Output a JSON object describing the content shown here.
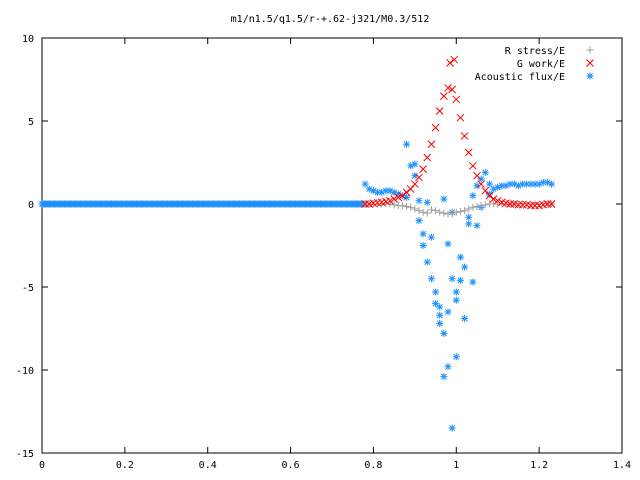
{
  "chart_data": {
    "type": "scatter",
    "title": "m1/n1.5/q1.5/r-+.62-j321/M0.3/512",
    "xlabel": "",
    "ylabel": "",
    "xlim": [
      0,
      1.4
    ],
    "ylim": [
      -15,
      10
    ],
    "xticks": [
      "0",
      "0.2",
      "0.4",
      "0.6",
      "0.8",
      "1",
      "1.2",
      "1.4"
    ],
    "yticks": [
      "10",
      "5",
      "0",
      "-5",
      "-10",
      "-15"
    ],
    "grid": false,
    "legend_position": "top-right",
    "series": [
      {
        "name": "R stress/E",
        "marker": "plus",
        "color": "#a0a0a0",
        "x": [
          0.78,
          0.79,
          0.8,
          0.81,
          0.82,
          0.83,
          0.84,
          0.85,
          0.86,
          0.87,
          0.88,
          0.89,
          0.9,
          0.91,
          0.92,
          0.93,
          0.94,
          0.95,
          0.96,
          0.97,
          0.98,
          0.99,
          1.0,
          1.01,
          1.02,
          1.03,
          1.04,
          1.05,
          1.06,
          1.07,
          1.08,
          1.09,
          1.1,
          1.11,
          1.12,
          1.13,
          1.14,
          1.15,
          1.16,
          1.17,
          1.18,
          1.19,
          1.2,
          1.21,
          1.22,
          1.23
        ],
        "y": [
          0.0,
          0.0,
          0.0,
          0.0,
          0.0,
          0.0,
          0.0,
          -0.05,
          -0.1,
          -0.1,
          -0.15,
          -0.2,
          -0.3,
          -0.4,
          -0.5,
          -0.55,
          -0.35,
          -0.4,
          -0.5,
          -0.55,
          -0.6,
          -0.6,
          -0.5,
          -0.45,
          -0.4,
          -0.3,
          -0.2,
          -0.15,
          -0.1,
          -0.05,
          0.0,
          0.0,
          0.0,
          0.0,
          0.0,
          0.0,
          0.0,
          0.0,
          0.0,
          0.0,
          0.0,
          0.0,
          0.0,
          0.0,
          0.0,
          0.0
        ]
      },
      {
        "name": "G work/E",
        "marker": "cross",
        "color": "#ff0000",
        "x": [
          0.78,
          0.79,
          0.8,
          0.81,
          0.82,
          0.83,
          0.84,
          0.85,
          0.86,
          0.87,
          0.88,
          0.89,
          0.9,
          0.91,
          0.92,
          0.93,
          0.94,
          0.95,
          0.96,
          0.97,
          0.98,
          0.99,
          1.0,
          1.01,
          1.02,
          1.03,
          1.04,
          1.05,
          1.06,
          1.07,
          1.08,
          1.09,
          1.1,
          1.11,
          1.12,
          1.13,
          1.14,
          1.15,
          1.16,
          1.17,
          1.18,
          1.19,
          1.2,
          1.21,
          1.22,
          1.23,
          0.985,
          0.995
        ],
        "y": [
          0.0,
          0.0,
          0.05,
          0.08,
          0.1,
          0.15,
          0.2,
          0.3,
          0.4,
          0.5,
          0.7,
          0.9,
          1.2,
          1.6,
          2.1,
          2.8,
          3.6,
          4.6,
          5.6,
          6.5,
          7.0,
          6.9,
          6.3,
          5.2,
          4.1,
          3.1,
          2.3,
          1.7,
          1.2,
          0.8,
          0.5,
          0.3,
          0.2,
          0.1,
          0.05,
          0.0,
          0.0,
          -0.05,
          -0.05,
          -0.05,
          -0.1,
          -0.1,
          -0.1,
          -0.05,
          0.0,
          0.0,
          8.5,
          8.7
        ]
      },
      {
        "name": "Acoustic flux/E",
        "marker": "star",
        "color": "#1e90ff",
        "x": [
          0.78,
          0.79,
          0.8,
          0.81,
          0.82,
          0.83,
          0.84,
          0.85,
          0.86,
          0.87,
          0.88,
          0.89,
          0.9,
          0.91,
          0.92,
          0.93,
          0.94,
          0.95,
          0.96,
          0.97,
          0.98,
          0.99,
          1.0,
          1.01,
          1.02,
          1.03,
          1.04,
          1.05,
          1.06,
          1.07,
          1.08,
          1.09,
          1.1,
          1.11,
          1.12,
          1.13,
          1.14,
          1.15,
          1.16,
          1.17,
          1.18,
          1.19,
          1.2,
          1.21,
          1.22,
          1.23,
          0.88,
          0.9,
          0.92,
          0.95,
          0.96,
          0.97,
          0.98,
          0.99,
          1.0,
          1.02,
          1.04,
          1.05,
          0.93,
          0.94,
          0.97,
          0.99,
          1.01,
          1.03,
          0.91,
          0.96,
          0.98,
          1.0,
          1.06,
          1.08
        ],
        "y": [
          1.2,
          0.9,
          0.8,
          0.7,
          0.7,
          0.8,
          0.8,
          0.7,
          0.6,
          0.5,
          0.4,
          2.3,
          1.7,
          -1.0,
          -2.5,
          -3.5,
          -4.5,
          -6.0,
          -7.2,
          -10.4,
          -9.8,
          -13.5,
          -9.2,
          -4.6,
          -3.8,
          -1.2,
          0.5,
          1.1,
          1.5,
          1.9,
          1.2,
          0.9,
          1.0,
          1.1,
          1.1,
          1.2,
          1.2,
          1.1,
          1.2,
          1.2,
          1.2,
          1.2,
          1.2,
          1.3,
          1.3,
          1.2,
          3.6,
          2.4,
          -1.8,
          -5.3,
          -6.7,
          -7.8,
          -6.5,
          -4.5,
          -5.3,
          -6.9,
          -4.7,
          -1.3,
          0.1,
          -2.0,
          0.3,
          -0.5,
          -3.2,
          -0.8,
          0.2,
          -6.2,
          -2.4,
          -5.8,
          -0.2,
          0.6
        ]
      }
    ]
  }
}
